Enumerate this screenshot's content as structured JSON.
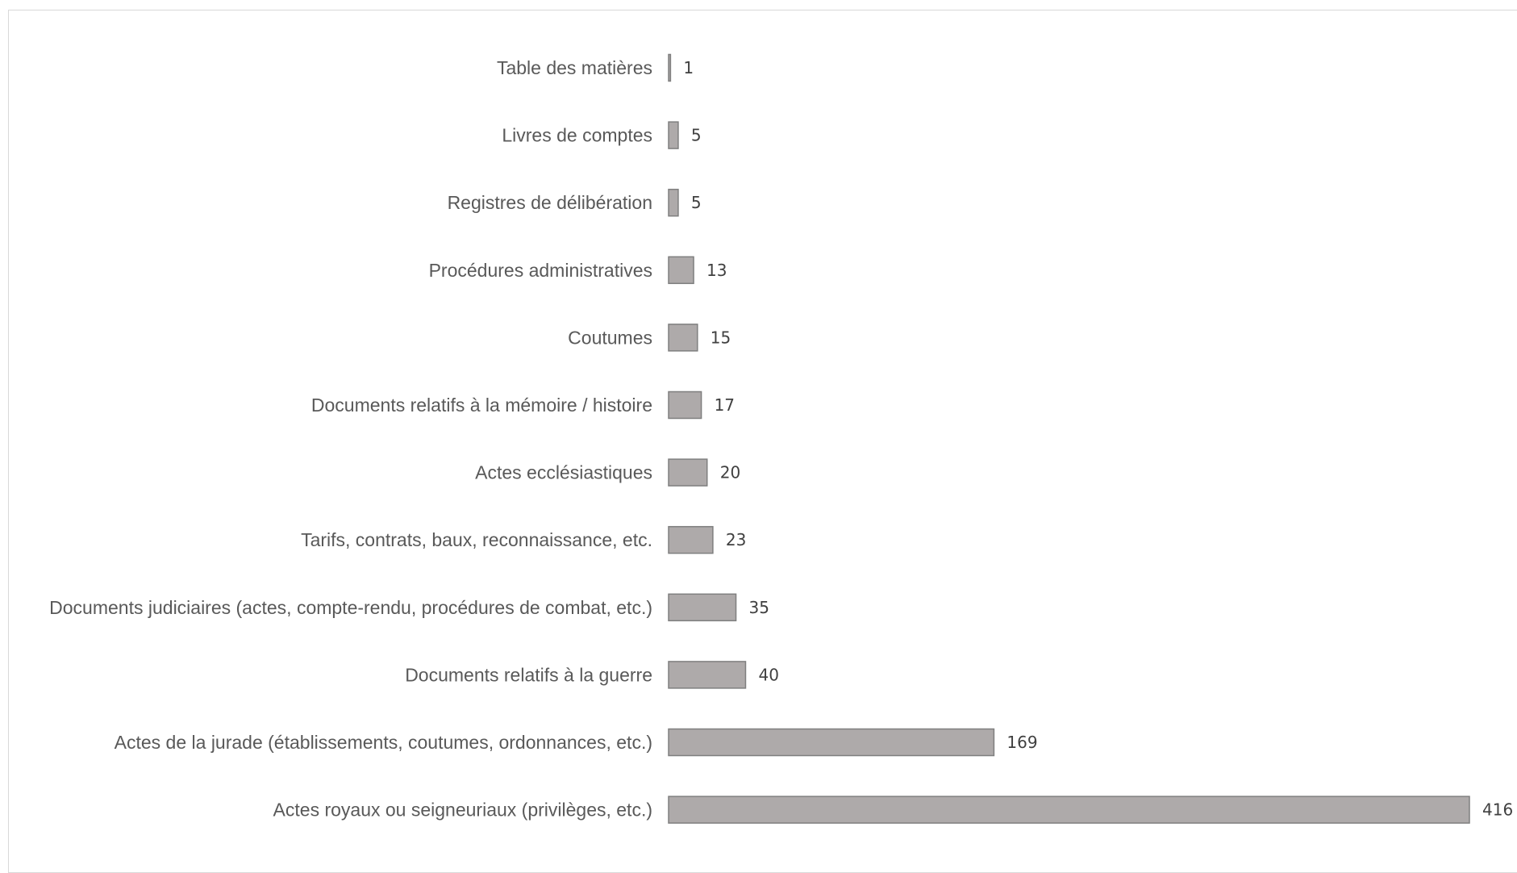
{
  "chart_data": {
    "type": "bar",
    "orientation": "horizontal",
    "categories": [
      "Table des matières",
      "Livres de comptes",
      "Registres de délibération",
      "Procédures administratives",
      "Coutumes",
      "Documents relatifs à la mémoire / histoire",
      "Actes ecclésiastiques",
      "Tarifs, contrats, baux, reconnaissance, etc.",
      "Documents judiciaires (actes, compte-rendu, procédures de combat, etc.)",
      "Documents relatifs à la guerre",
      "Actes de la jurade (établissements, coutumes, ordonnances, etc.)",
      "Actes royaux ou seigneuriaux (privilèges, etc.)"
    ],
    "values": [
      1,
      5,
      5,
      13,
      15,
      17,
      20,
      23,
      35,
      40,
      169,
      416
    ],
    "data_labels": [
      "1",
      "5",
      "5",
      "13",
      "15",
      "17",
      "20",
      "23",
      "35",
      "40",
      "169",
      "416"
    ],
    "title": "",
    "xlabel": "",
    "ylabel": "",
    "xlim": [
      0,
      416
    ],
    "grid": false,
    "legend": "none",
    "bar_color": "#aeaaaa",
    "bar_edge_color": "#7f7f7f"
  }
}
